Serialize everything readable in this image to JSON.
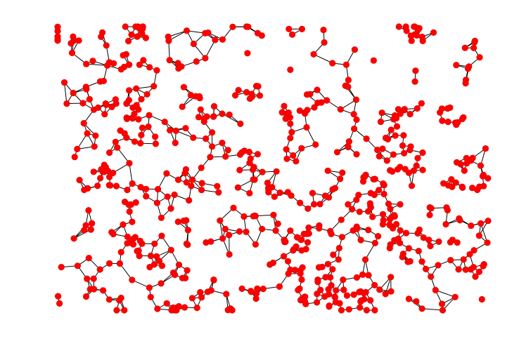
{
  "chart_data": {
    "type": "network",
    "title": "",
    "xlabel": "",
    "ylabel": "",
    "xlim": [
      0,
      1
    ],
    "ylim": [
      0,
      1
    ],
    "axes_visible": false,
    "node_color": "#ff0000",
    "edge_color": "#000000",
    "seed": 7,
    "node_count": 700,
    "neighbors_per_node": 2,
    "max_link_distance": 0.05
  }
}
